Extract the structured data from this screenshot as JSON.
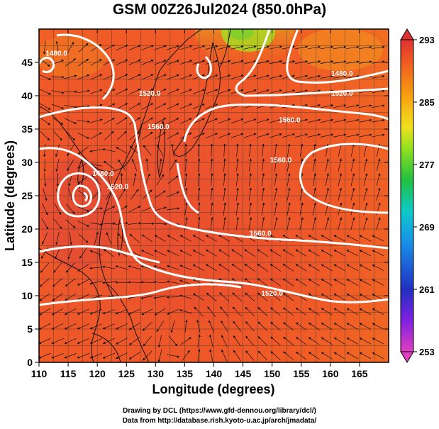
{
  "title": "GSM 00Z26Jul2024 (850.0hPa)",
  "xlabel": "Longitude (degrees)",
  "ylabel": "Latitude  (degrees)",
  "x_ticks": [
    "110",
    "115",
    "120",
    "125",
    "130",
    "135",
    "140",
    "145",
    "150",
    "155",
    "160",
    "165"
  ],
  "y_ticks": [
    "0",
    "5",
    "10",
    "15",
    "20",
    "25",
    "30",
    "35",
    "40",
    "45"
  ],
  "x_range": [
    110,
    170
  ],
  "y_range": [
    0,
    50
  ],
  "colorbar": {
    "ticks": [
      "253",
      "261",
      "269",
      "277",
      "285",
      "293"
    ],
    "range": [
      253,
      293
    ],
    "colors": [
      "#e040c0",
      "#8020e0",
      "#2030c0",
      "#1890e8",
      "#10c8c8",
      "#20c040",
      "#90e020",
      "#f0e020",
      "#f8a010",
      "#f06020",
      "#e03030"
    ]
  },
  "contour_labels": [
    {
      "text": "1480.0",
      "lon": 113,
      "lat": 46
    },
    {
      "text": "1480.0",
      "lon": 121,
      "lat": 28
    },
    {
      "text": "1520.0",
      "lon": 129,
      "lat": 40
    },
    {
      "text": "1560.0",
      "lon": 130.5,
      "lat": 35
    },
    {
      "text": "1520.0",
      "lon": 123.5,
      "lat": 26
    },
    {
      "text": "1480.0",
      "lon": 162,
      "lat": 43
    },
    {
      "text": "1520.0",
      "lon": 162,
      "lat": 40
    },
    {
      "text": "1560.0",
      "lon": 153,
      "lat": 36
    },
    {
      "text": "1560.0",
      "lon": 151.5,
      "lat": 30
    },
    {
      "text": "1560.0",
      "lon": 148,
      "lat": 19
    },
    {
      "text": "1520.0",
      "lon": 150,
      "lat": 10
    }
  ],
  "credits": {
    "line1": "Drawing by DCL (https://www.gfd-dennou.org/library/dcl/)",
    "line2": "Data from http://database.rish.kyoto-u.ac.jp/arch/jmadata/"
  }
}
